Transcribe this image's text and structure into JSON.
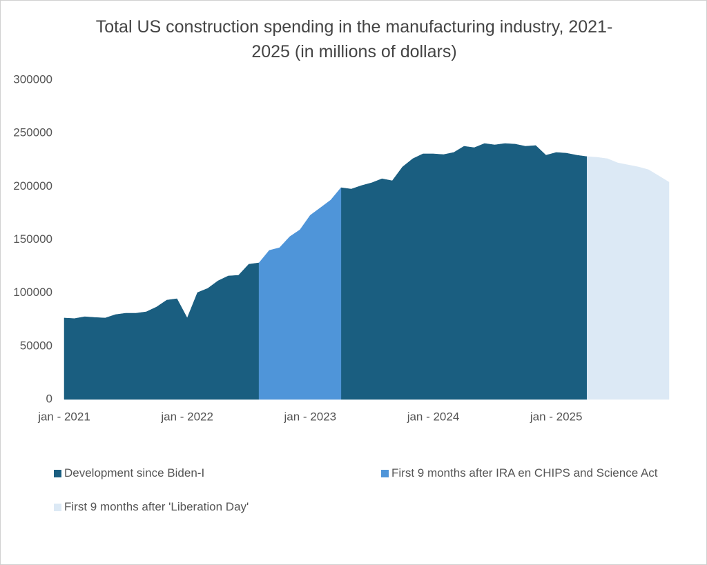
{
  "chart_data": {
    "type": "area",
    "title": "Total US construction spending in the manufacturing industry, 2021-2025 (in millions of dollars)",
    "categories": [
      "jan - 2021",
      null,
      null,
      null,
      null,
      null,
      null,
      null,
      null,
      null,
      null,
      null,
      "jan - 2022",
      null,
      null,
      null,
      null,
      null,
      null,
      null,
      null,
      null,
      null,
      null,
      "jan - 2023",
      null,
      null,
      null,
      null,
      null,
      null,
      null,
      null,
      null,
      null,
      null,
      "jan - 2024",
      null,
      null,
      null,
      null,
      null,
      null,
      null,
      null,
      null,
      null,
      null,
      "jan - 2025",
      null,
      null,
      null,
      null,
      null,
      null,
      null,
      null,
      null,
      null,
      null
    ],
    "series": [
      {
        "name": "Development since Biden-I",
        "color": "#1a5e80",
        "values": [
          76500,
          76000,
          77700,
          77000,
          76500,
          79700,
          81000,
          81000,
          82300,
          86800,
          93300,
          94600,
          76500,
          100400,
          104300,
          111400,
          116000,
          116600,
          127000,
          128300,
          null,
          null,
          null,
          null,
          null,
          null,
          null,
          198900,
          197600,
          200900,
          203500,
          207300,
          205400,
          218400,
          226100,
          230700,
          230700,
          230000,
          232000,
          237800,
          236500,
          240400,
          239100,
          240400,
          239800,
          237800,
          238500,
          229400,
          232000,
          231300,
          229400,
          228100,
          null,
          null,
          null,
          null,
          null,
          null,
          null,
          null
        ]
      },
      {
        "name": "First 9 months after IRA en CHIPS and Science Act",
        "color": "#4f95d9",
        "values": [
          null,
          null,
          null,
          null,
          null,
          null,
          null,
          null,
          null,
          null,
          null,
          null,
          null,
          null,
          null,
          null,
          null,
          null,
          null,
          128300,
          140000,
          142500,
          152900,
          159400,
          173000,
          180100,
          187300,
          198900,
          null,
          null,
          null,
          null,
          null,
          null,
          null,
          null,
          null,
          null,
          null,
          null,
          null,
          null,
          null,
          null,
          null,
          null,
          null,
          null,
          null,
          null,
          null,
          null,
          null,
          null,
          null,
          null,
          null,
          null,
          null,
          null
        ]
      },
      {
        "name": "First 9 months after 'Liberation Day'",
        "color": "#dce9f5",
        "values": [
          null,
          null,
          null,
          null,
          null,
          null,
          null,
          null,
          null,
          null,
          null,
          null,
          null,
          null,
          null,
          null,
          null,
          null,
          null,
          null,
          null,
          null,
          null,
          null,
          null,
          null,
          null,
          null,
          null,
          null,
          null,
          null,
          null,
          null,
          null,
          null,
          null,
          null,
          null,
          null,
          null,
          null,
          null,
          null,
          null,
          null,
          null,
          null,
          null,
          null,
          null,
          228100,
          227400,
          226100,
          222200,
          220300,
          218400,
          215800,
          210000,
          204100
        ]
      }
    ],
    "ylim": [
      0,
      300000
    ],
    "yticks": [
      0,
      50000,
      100000,
      150000,
      200000,
      250000,
      300000
    ],
    "grid": false
  }
}
